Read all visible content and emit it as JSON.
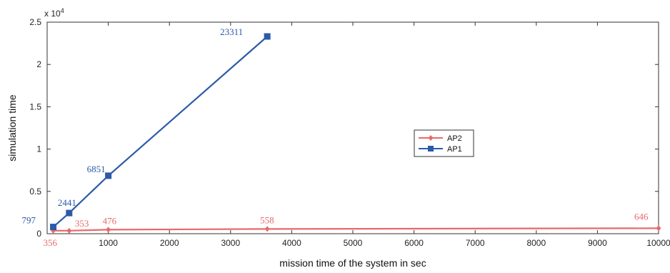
{
  "chart_data": {
    "type": "line",
    "title": "",
    "xlabel": "mission time of the system in sec",
    "ylabel": "simulation time",
    "y_multiplier_label": "x 10",
    "y_multiplier_exponent": "4",
    "xlim": [
      0,
      10000
    ],
    "ylim": [
      0,
      25000
    ],
    "x_ticks": [
      1000,
      2000,
      3000,
      4000,
      5000,
      6000,
      7000,
      8000,
      9000,
      10000
    ],
    "y_ticks": [
      0,
      5000,
      10000,
      15000,
      20000,
      25000
    ],
    "x_tick_labels": [
      "1000",
      "2000",
      "3000",
      "4000",
      "5000",
      "6000",
      "7000",
      "8000",
      "9000",
      "10000"
    ],
    "y_tick_labels": [
      "0",
      "0.5",
      "1",
      "1.5",
      "2",
      "2.5"
    ],
    "grid": false,
    "legend_position": "center-right",
    "series": [
      {
        "name": "AP2",
        "color": "#e8696b",
        "marker": "diamond",
        "x": [
          100,
          360,
          1000,
          3600,
          10000
        ],
        "y": [
          356,
          353,
          476,
          558,
          646
        ],
        "labels": [
          "356",
          "353",
          "476",
          "558",
          "646"
        ]
      },
      {
        "name": "AP1",
        "color": "#2c5aa8",
        "marker": "square",
        "x": [
          100,
          360,
          1000,
          3600
        ],
        "y": [
          797,
          2441,
          6851,
          23311
        ],
        "labels": [
          "797",
          "2441",
          "6851",
          "23311"
        ]
      }
    ]
  }
}
